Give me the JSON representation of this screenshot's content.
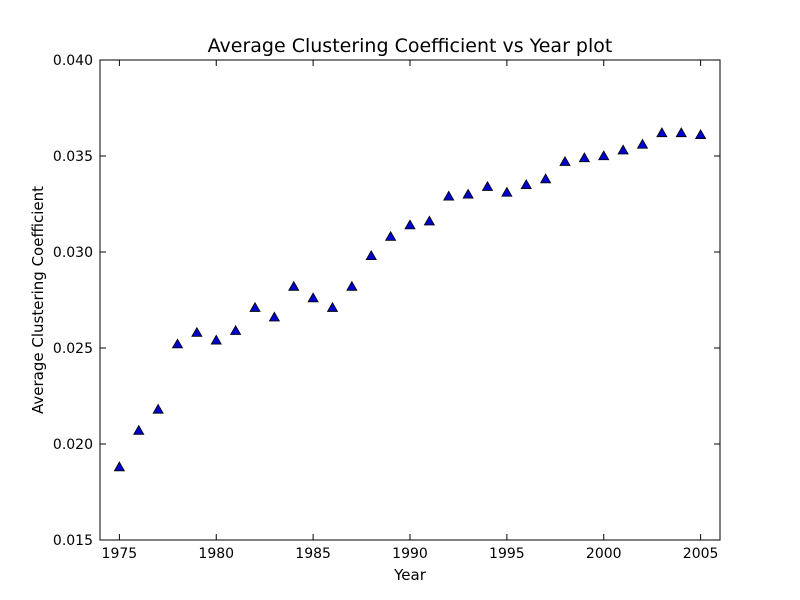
{
  "chart_data": {
    "type": "scatter",
    "title": "Average Clustering Coefficient vs Year plot",
    "xlabel": "Year",
    "ylabel": "Average Clustering Coefficient",
    "xlim": [
      1974,
      2006
    ],
    "ylim": [
      0.015,
      0.04
    ],
    "xticks": [
      1975,
      1980,
      1985,
      1990,
      1995,
      2000,
      2005
    ],
    "xtick_labels": [
      "1975",
      "1980",
      "1985",
      "1990",
      "1995",
      "2000",
      "2005"
    ],
    "yticks": [
      0.015,
      0.02,
      0.025,
      0.03,
      0.035,
      0.04
    ],
    "ytick_labels": [
      "0.015",
      "0.020",
      "0.025",
      "0.030",
      "0.035",
      "0.040"
    ],
    "grid": false,
    "marker": "triangle-up",
    "marker_color": "#0000cc",
    "x": [
      1975,
      1976,
      1977,
      1978,
      1979,
      1980,
      1981,
      1982,
      1983,
      1984,
      1985,
      1986,
      1987,
      1988,
      1989,
      1990,
      1991,
      1992,
      1993,
      1994,
      1995,
      1996,
      1997,
      1998,
      1999,
      2000,
      2001,
      2002,
      2003,
      2004,
      2005
    ],
    "y": [
      0.0188,
      0.0207,
      0.0218,
      0.0252,
      0.0258,
      0.0254,
      0.0259,
      0.0271,
      0.0266,
      0.0282,
      0.0276,
      0.0271,
      0.0282,
      0.0298,
      0.0308,
      0.0314,
      0.0316,
      0.0329,
      0.033,
      0.0334,
      0.0331,
      0.0335,
      0.0338,
      0.0347,
      0.0349,
      0.035,
      0.0353,
      0.0356,
      0.0362,
      0.0362,
      0.0361
    ]
  }
}
